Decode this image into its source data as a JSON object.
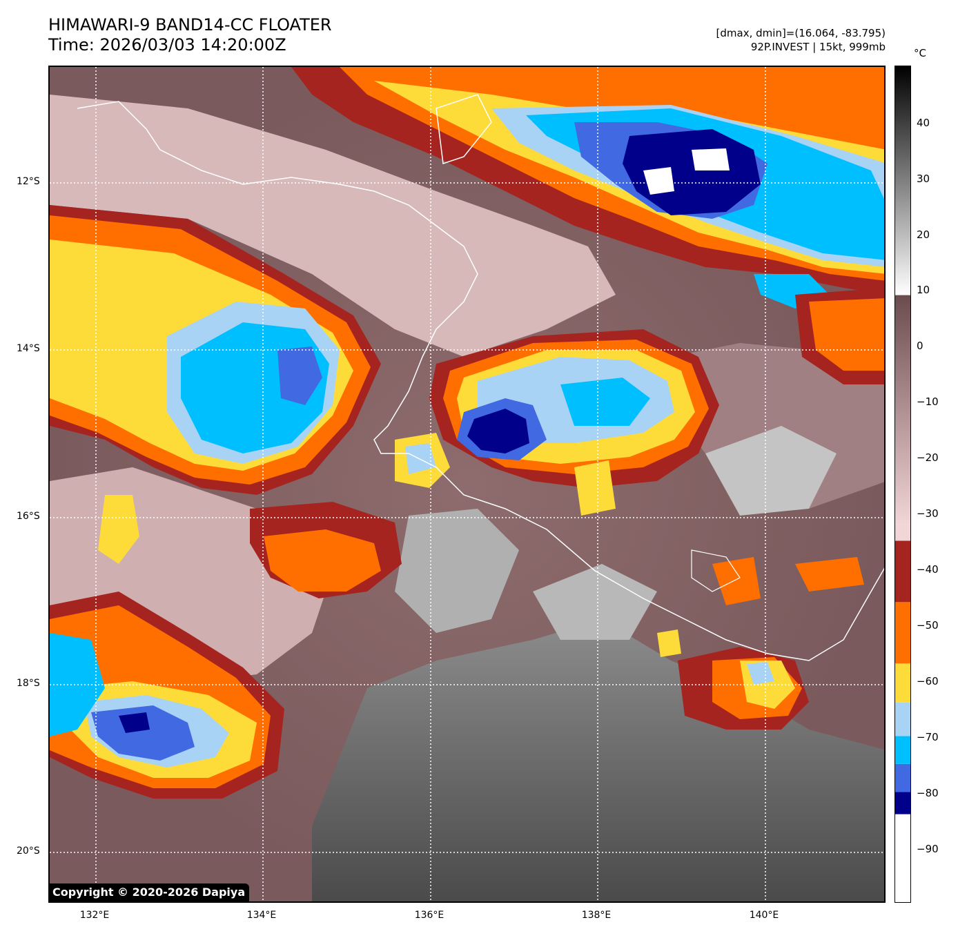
{
  "title": {
    "line1": "HIMAWARI-9 BAND14-CC FLOATER",
    "line2": "Time: 2026/03/03 14:20:00Z"
  },
  "info": {
    "line1": "[dmax, dmin]=(16.064, -83.795)",
    "line2": "92P.INVEST | 15kt, 999mb"
  },
  "map": {
    "lon_range": [
      131.45,
      141.45
    ],
    "lat_range": [
      -20.6,
      -10.6
    ],
    "lat_labels": [
      "12°S",
      "14°S",
      "16°S",
      "18°S",
      "20°S"
    ],
    "lon_labels": [
      "132°E",
      "134°E",
      "136°E",
      "138°E",
      "140°E"
    ],
    "gridlines": "dotted-white"
  },
  "colorbar": {
    "unit": "°C",
    "range": [
      -100,
      50
    ],
    "ticks": [
      "40",
      "30",
      "20",
      "10",
      "0",
      "−10",
      "−20",
      "−30",
      "−40",
      "−50",
      "−60",
      "−70",
      "−80",
      "−90"
    ],
    "segments": [
      {
        "from": -100,
        "to": -84,
        "color": "#ffffff"
      },
      {
        "from": -84,
        "to": -80,
        "color": "#00008b"
      },
      {
        "from": -80,
        "to": -75,
        "color": "#4169e1"
      },
      {
        "from": -75,
        "to": -70,
        "color": "#00bfff"
      },
      {
        "from": -70,
        "to": -64,
        "color": "#a9d3f5"
      },
      {
        "from": -64,
        "to": -57,
        "color": "#fddc3a"
      },
      {
        "from": -57,
        "to": -46,
        "color": "#ff6f00"
      },
      {
        "from": -46,
        "to": -35,
        "color": "#a52420"
      },
      {
        "from": -35,
        "to": -32,
        "color": "#f2d5d7"
      },
      {
        "from": -32,
        "to": 9,
        "color": "gradient-brown"
      },
      {
        "from": 9,
        "to": 50,
        "color": "gradient-gray"
      }
    ]
  },
  "copyright": "Copyright © 2020-2026 Dapiya"
}
